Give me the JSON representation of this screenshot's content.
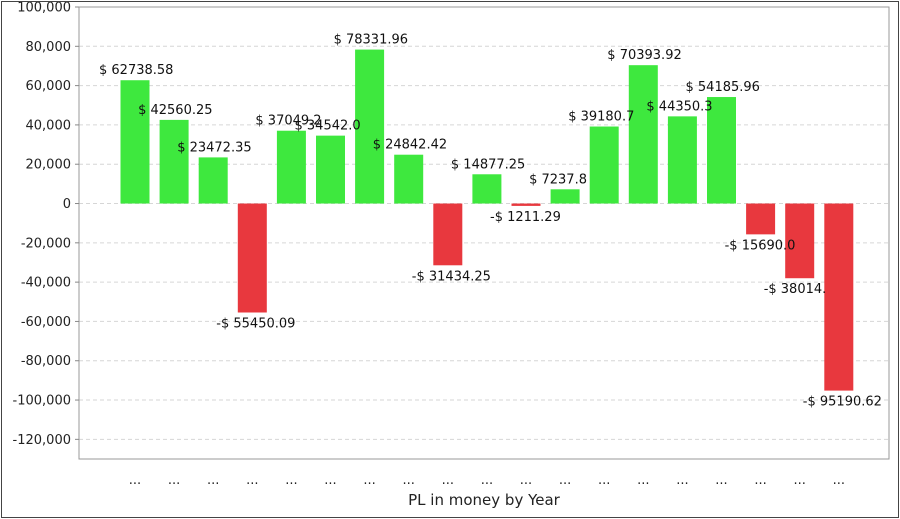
{
  "chart_data": {
    "type": "bar",
    "title": "",
    "xlabel": "PL in money by Year",
    "ylabel": "",
    "ylim": [
      -130000,
      100000
    ],
    "yticks": [
      100000,
      80000,
      60000,
      40000,
      20000,
      0,
      -20000,
      -40000,
      -60000,
      -80000,
      -100000,
      -120000
    ],
    "ytick_labels": [
      "100,000",
      "80,000",
      "60,000",
      "40,000",
      "20,000",
      "0",
      "-20,000",
      "-40,000",
      "-60,000",
      "-80,000",
      "-100,000",
      "-120,000"
    ],
    "grid": true,
    "categories": [
      "...",
      "...",
      "...",
      "...",
      "...",
      "...",
      "...",
      "...",
      "...",
      "...",
      "...",
      "...",
      "...",
      "...",
      "...",
      "...",
      "...",
      "...",
      "..."
    ],
    "values": [
      62738.58,
      42560.25,
      23472.35,
      -55450.09,
      37049.2,
      34542.0,
      78331.96,
      24842.42,
      -31434.25,
      14877.25,
      -1211.29,
      7237.8,
      39180.7,
      70393.92,
      44350.3,
      54185.96,
      -15690.0,
      -38014.0,
      -95190.62
    ],
    "data_labels": [
      "$ 62738.58",
      "$ 42560.25",
      "$ 23472.35",
      "-$ 55450.09",
      "$ 37049.2",
      "$ 34542.0",
      "$ 78331.96",
      "$ 24842.42",
      "-$ 31434.25",
      "$ 14877.25",
      "-$ 1211.29",
      "$ 7237.8",
      "$ 39180.7",
      "$ 70393.92",
      "$ 44350.3",
      "$ 54185.96",
      "-$ 15690.0",
      "-$ 38014.",
      "-$ 95190.62"
    ],
    "colors": {
      "positive": "#3ee83e",
      "negative": "#e8383e"
    }
  }
}
